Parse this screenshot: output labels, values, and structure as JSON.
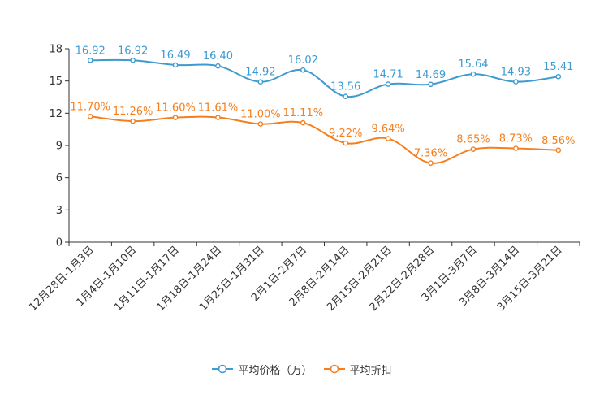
{
  "chart_data": {
    "type": "line",
    "categories": [
      "12月28日-1月3日",
      "1月4日-1月10日",
      "1月11日-1月17日",
      "1月18日-1月24日",
      "1月25日-1月31日",
      "2月1日-2月7日",
      "2月8日-2月14日",
      "2月15日-2月21日",
      "2月22日-2月28日",
      "3月1日-3月7日",
      "3月8日-3月14日",
      "3月15日-3月21日"
    ],
    "ylim": [
      0,
      18
    ],
    "yticks": [
      "0",
      "3",
      "6",
      "9",
      "12",
      "15",
      "18"
    ],
    "series": [
      {
        "name": "平均价格（万）",
        "color": "#3d9bd1",
        "values": [
          16.92,
          16.92,
          16.49,
          16.4,
          14.92,
          16.02,
          13.56,
          14.71,
          14.69,
          15.64,
          14.93,
          15.41
        ],
        "labels": [
          "16.92",
          "16.92",
          "16.49",
          "16.40",
          "14.92",
          "16.02",
          "13.56",
          "14.71",
          "14.69",
          "15.64",
          "14.93",
          "15.41"
        ]
      },
      {
        "name": "平均折扣",
        "color": "#f57f1f",
        "values": [
          11.7,
          11.26,
          11.6,
          11.61,
          11.0,
          11.11,
          9.22,
          9.64,
          7.36,
          8.65,
          8.73,
          8.56
        ],
        "labels": [
          "11.70%",
          "11.26%",
          "11.60%",
          "11.61%",
          "11.00%",
          "11.11%",
          "9.22%",
          "9.64%",
          "7.36%",
          "8.65%",
          "8.73%",
          "8.56%"
        ]
      }
    ],
    "legend_position": "bottom-center"
  }
}
